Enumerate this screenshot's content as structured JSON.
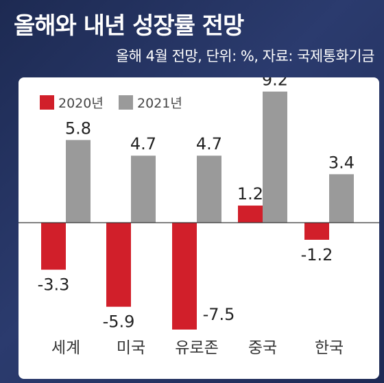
{
  "header": {
    "title": "올해와 내년 성장률 전망",
    "subtitle": "올해 4월 전망, 단위: %, 자료: 국제통화기금"
  },
  "colors": {
    "series_2020": "#d11f2a",
    "series_2021": "#9a9a9a"
  },
  "chart_data": {
    "type": "bar",
    "categories": [
      "세계",
      "미국",
      "유로존",
      "중국",
      "한국"
    ],
    "series": [
      {
        "name": "2020년",
        "values": [
          -3.3,
          -5.9,
          -7.5,
          1.2,
          -1.2
        ]
      },
      {
        "name": "2021년",
        "values": [
          5.8,
          4.7,
          4.7,
          9.2,
          3.4
        ]
      }
    ],
    "value_labels": {
      "2020년": [
        "-3.3",
        "-5.9",
        "-7.5",
        "1.2",
        "-1.2"
      ],
      "2021년": [
        "5.8",
        "4.7",
        "4.7",
        "9.2",
        "3.4"
      ]
    },
    "ylim": [
      -8,
      10
    ],
    "legend": "top-left",
    "grid": false,
    "title": "",
    "xlabel": "",
    "ylabel": ""
  }
}
